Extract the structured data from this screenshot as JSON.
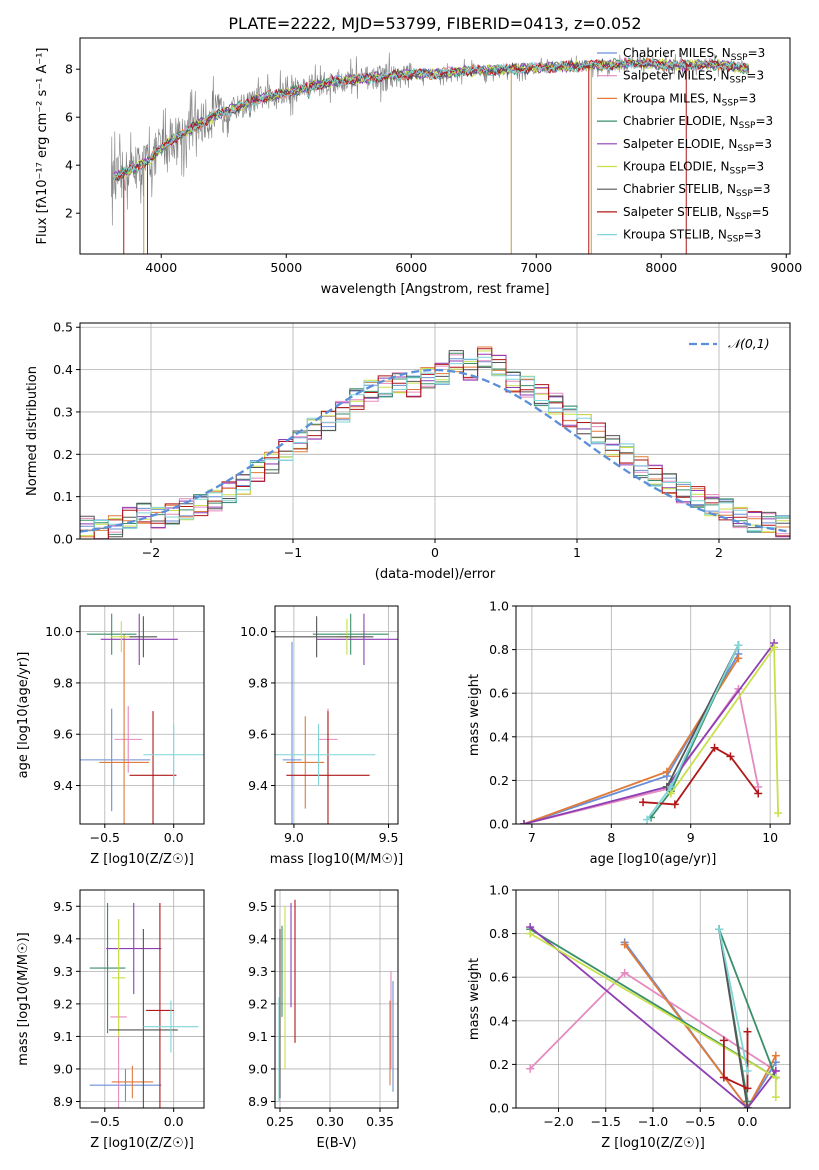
{
  "title": "PLATE=2222, MJD=53799, FIBERID=0413, z=0.052",
  "colors": {
    "chabrier_miles": "#6a8fd6",
    "salpeter_miles": "#e58ac0",
    "kroupa_miles": "#e07b39",
    "chabrier_elodie": "#3a8f6a",
    "salpeter_elodie": "#8e3fb5",
    "kroupa_elodie": "#c8e04a",
    "chabrier_stelib": "#555555",
    "salpeter_stelib": "#b0181a",
    "kroupa_stelib": "#7fd6d8",
    "data": "#808080",
    "normal": "#5b8fd9"
  },
  "chart_data": [
    {
      "type": "line",
      "id": "spectrum",
      "xlabel": "wavelength [Angstrom, rest frame]",
      "ylabel": "Flux [fλ10⁻¹⁷ erg cm⁻² s⁻¹ A⁻¹]",
      "xlim": [
        3350,
        9030
      ],
      "ylim": [
        0.3,
        9.3
      ],
      "xticks": [
        4000,
        5000,
        6000,
        7000,
        8000,
        9000
      ],
      "yticks": [
        2,
        4,
        6,
        8
      ],
      "legend_position": "top-right",
      "legend": [
        "Chabrier MILES, N_SSP=3",
        "Salpeter MILES, N_SSP=3",
        "Kroupa MILES, N_SSP=3",
        "Chabrier ELODIE, N_SSP=3",
        "Salpeter ELODIE, N_SSP=3",
        "Kroupa ELODIE, N_SSP=3",
        "Chabrier STELIB, N_SSP=3",
        "Salpeter STELIB, N_SSP=5",
        "Kroupa STELIB, N_SSP=3"
      ],
      "continuum": {
        "x": [
          3600,
          3700,
          3800,
          3900,
          4000,
          4100,
          4200,
          4400,
          4600,
          4800,
          5000,
          5200,
          5400,
          5600,
          5800,
          6000,
          6200,
          6400,
          6600,
          6800,
          7000,
          7200,
          7400,
          7600,
          7800,
          8000,
          8200,
          8400,
          8600,
          8700
        ],
        "y": [
          3.4,
          3.7,
          3.9,
          4.2,
          4.7,
          5.1,
          5.4,
          6.0,
          6.4,
          6.8,
          7.0,
          7.3,
          7.5,
          7.6,
          7.7,
          7.8,
          7.8,
          7.9,
          7.95,
          8.0,
          8.05,
          8.1,
          8.15,
          8.2,
          8.25,
          8.2,
          8.15,
          8.2,
          8.1,
          8.0
        ]
      }
    },
    {
      "type": "bar",
      "id": "residuals",
      "xlabel": "(data-model)/error",
      "ylabel": "Normed distribution",
      "xlim": [
        -2.5,
        2.5
      ],
      "ylim": [
        0,
        0.51
      ],
      "xticks": [
        -2,
        -1,
        0,
        1,
        2
      ],
      "yticks": [
        0,
        0.1,
        0.2,
        0.3,
        0.4,
        0.5
      ],
      "legend": [
        "𝒩(0,1)"
      ],
      "bin_width": 0.1,
      "bins_start": -2.5,
      "hist": [
        0.03,
        0.02,
        0.03,
        0.05,
        0.06,
        0.05,
        0.06,
        0.07,
        0.08,
        0.09,
        0.11,
        0.13,
        0.16,
        0.18,
        0.21,
        0.23,
        0.26,
        0.28,
        0.3,
        0.33,
        0.35,
        0.36,
        0.37,
        0.36,
        0.38,
        0.39,
        0.42,
        0.4,
        0.43,
        0.41,
        0.37,
        0.36,
        0.34,
        0.32,
        0.29,
        0.27,
        0.25,
        0.22,
        0.2,
        0.17,
        0.15,
        0.13,
        0.11,
        0.1,
        0.08,
        0.07,
        0.05,
        0.04,
        0.04,
        0.03
      ],
      "normal_curve": {
        "mu": 0,
        "sigma": 1
      }
    },
    {
      "type": "scatter",
      "id": "age_vs_z",
      "xlabel": "Z [log10(Z/Z☉)]",
      "ylabel": "age [log10(age/yr)]",
      "xlim": [
        -0.68,
        0.22
      ],
      "ylim": [
        9.25,
        10.1
      ],
      "xticks": [
        -0.5,
        0.0
      ],
      "yticks": [
        9.4,
        9.6,
        9.8,
        10.0
      ],
      "points": [
        {
          "s": 0,
          "x": -0.45,
          "y": 9.5,
          "xe": 0.28,
          "ye": 0.2
        },
        {
          "s": 1,
          "x": -0.33,
          "y": 9.58,
          "xe": 0.1,
          "ye": 0.13
        },
        {
          "s": 2,
          "x": -0.36,
          "y": 9.49,
          "xe": 0.18,
          "ye": 0.5
        },
        {
          "s": 3,
          "x": -0.45,
          "y": 9.99,
          "xe": 0.18,
          "ye": 0.08
        },
        {
          "s": 4,
          "x": -0.25,
          "y": 9.97,
          "xe": 0.28,
          "ye": 0.1
        },
        {
          "s": 5,
          "x": -0.38,
          "y": 9.98,
          "xe": 0.08,
          "ye": 0.06
        },
        {
          "s": 6,
          "x": -0.22,
          "y": 9.98,
          "xe": 0.1,
          "ye": 0.08
        },
        {
          "s": 7,
          "x": -0.15,
          "y": 9.44,
          "xe": 0.17,
          "ye": 0.25
        },
        {
          "s": 8,
          "x": 0.0,
          "y": 9.52,
          "xe": 0.22,
          "ye": 0.12
        }
      ]
    },
    {
      "type": "scatter",
      "id": "age_vs_mass",
      "xlabel": "mass [log10(M/M☉)]",
      "ylabel": "",
      "xlim": [
        8.9,
        9.55
      ],
      "ylim": [
        9.25,
        10.1
      ],
      "xticks": [
        9.0,
        9.5
      ],
      "yticks": [
        9.4,
        9.6,
        9.8,
        10.0
      ],
      "points": [
        {
          "s": 0,
          "x": 8.99,
          "y": 9.5,
          "xe": 0.05,
          "ye": 0.46
        },
        {
          "s": 1,
          "x": 9.18,
          "y": 9.58,
          "xe": 0.05,
          "ye": 0.12
        },
        {
          "s": 2,
          "x": 9.06,
          "y": 9.49,
          "xe": 0.1,
          "ye": 0.18
        },
        {
          "s": 3,
          "x": 9.3,
          "y": 9.99,
          "xe": 0.2,
          "ye": 0.08
        },
        {
          "s": 4,
          "x": 9.37,
          "y": 9.97,
          "xe": 0.25,
          "ye": 0.1
        },
        {
          "s": 5,
          "x": 9.28,
          "y": 9.98,
          "xe": 0.05,
          "ye": 0.07
        },
        {
          "s": 6,
          "x": 9.12,
          "y": 9.98,
          "xe": 0.3,
          "ye": 0.08
        },
        {
          "s": 7,
          "x": 9.18,
          "y": 9.44,
          "xe": 0.22,
          "ye": 0.25
        },
        {
          "s": 8,
          "x": 9.13,
          "y": 9.52,
          "xe": 0.3,
          "ye": 0.12
        }
      ]
    },
    {
      "type": "line",
      "id": "mw_vs_age",
      "xlabel": "age [log10(age/yr)]",
      "ylabel": "mass weight",
      "xlim": [
        6.8,
        10.25
      ],
      "ylim": [
        0,
        1.0
      ],
      "xticks": [
        7,
        8,
        9,
        10
      ],
      "yticks": [
        0.0,
        0.2,
        0.4,
        0.6,
        0.8,
        1.0
      ],
      "series": [
        {
          "s": 0,
          "x": [
            6.9,
            8.7,
            9.6
          ],
          "y": [
            0.0,
            0.22,
            0.78
          ]
        },
        {
          "s": 1,
          "x": [
            6.9,
            8.7,
            9.6,
            9.85
          ],
          "y": [
            0.0,
            0.16,
            0.62,
            0.17
          ]
        },
        {
          "s": 2,
          "x": [
            6.9,
            8.7,
            9.6
          ],
          "y": [
            0.0,
            0.24,
            0.76
          ]
        },
        {
          "s": 3,
          "x": [
            8.5,
            8.75,
            9.6
          ],
          "y": [
            0.03,
            0.15,
            0.82
          ]
        },
        {
          "s": 4,
          "x": [
            6.9,
            8.7,
            10.05
          ],
          "y": [
            0.0,
            0.17,
            0.83
          ]
        },
        {
          "s": 5,
          "x": [
            8.75,
            10.05,
            10.1
          ],
          "y": [
            0.14,
            0.81,
            0.05
          ]
        },
        {
          "s": 6,
          "x": [
            8.7,
            9.6
          ],
          "y": [
            0.17,
            0.82
          ]
        },
        {
          "s": 7,
          "x": [
            8.4,
            8.8,
            9.3,
            9.5,
            9.85
          ],
          "y": [
            0.1,
            0.09,
            0.35,
            0.31,
            0.14
          ]
        },
        {
          "s": 8,
          "x": [
            8.45,
            8.75,
            9.6
          ],
          "y": [
            0.02,
            0.17,
            0.82
          ]
        }
      ]
    },
    {
      "type": "scatter",
      "id": "mass_vs_z",
      "xlabel": "Z [log10(Z/Z☉)]",
      "ylabel": "mass [log10(M/M☉)]",
      "xlim": [
        -0.68,
        0.22
      ],
      "ylim": [
        8.88,
        9.55
      ],
      "xticks": [
        -0.5,
        0.0
      ],
      "yticks": [
        8.9,
        9.0,
        9.1,
        9.2,
        9.3,
        9.4,
        9.5
      ],
      "points": [
        {
          "s": 0,
          "x": -0.35,
          "y": 8.95,
          "xe": 0.26,
          "ye": 0.05
        },
        {
          "s": 1,
          "x": -0.4,
          "y": 9.16,
          "xe": 0.06,
          "ye": 0.3
        },
        {
          "s": 2,
          "x": -0.3,
          "y": 8.96,
          "xe": 0.15,
          "ye": 0.05
        },
        {
          "s": 3,
          "x": -0.48,
          "y": 9.31,
          "xe": 0.13,
          "ye": 0.2
        },
        {
          "s": 4,
          "x": -0.29,
          "y": 9.37,
          "xe": 0.2,
          "ye": 0.14
        },
        {
          "s": 5,
          "x": -0.4,
          "y": 9.28,
          "xe": 0.05,
          "ye": 0.18
        },
        {
          "s": 6,
          "x": -0.22,
          "y": 9.12,
          "xe": 0.25,
          "ye": 0.31
        },
        {
          "s": 7,
          "x": -0.1,
          "y": 9.18,
          "xe": 0.1,
          "ye": 0.33
        },
        {
          "s": 8,
          "x": -0.02,
          "y": 9.13,
          "xe": 0.2,
          "ye": 0.08
        }
      ]
    },
    {
      "type": "scatter",
      "id": "mass_vs_ebv",
      "xlabel": "E(B-V)",
      "ylabel": "",
      "xlim": [
        0.245,
        0.368
      ],
      "ylim": [
        8.88,
        9.55
      ],
      "xticks": [
        0.25,
        0.3,
        0.35
      ],
      "yticks": [
        8.9,
        9.0,
        9.1,
        9.2,
        9.3,
        9.4,
        9.5
      ],
      "points": [
        {
          "s": 0,
          "x": 0.363,
          "y": 9.1,
          "ye": 0.17
        },
        {
          "s": 1,
          "x": 0.361,
          "y": 9.15,
          "ye": 0.15
        },
        {
          "s": 2,
          "x": 0.36,
          "y": 9.08,
          "ye": 0.13
        },
        {
          "s": 3,
          "x": 0.252,
          "y": 9.3,
          "ye": 0.14
        },
        {
          "s": 4,
          "x": 0.261,
          "y": 9.35,
          "ye": 0.16
        },
        {
          "s": 5,
          "x": 0.255,
          "y": 9.25,
          "ye": 0.25
        },
        {
          "s": 6,
          "x": 0.25,
          "y": 9.17,
          "ye": 0.26
        },
        {
          "s": 7,
          "x": 0.265,
          "y": 9.3,
          "ye": 0.22
        },
        {
          "s": 8,
          "x": 0.249,
          "y": 9.06,
          "ye": 0.16
        }
      ]
    },
    {
      "type": "line",
      "id": "mw_vs_z",
      "xlabel": "Z [log10(Z/Z☉)]",
      "ylabel": "mass weight",
      "xlim": [
        -2.45,
        0.45
      ],
      "ylim": [
        0,
        1.0
      ],
      "xticks": [
        -2.0,
        -1.5,
        -1.0,
        -0.5,
        0.0
      ],
      "yticks": [
        0.0,
        0.2,
        0.4,
        0.6,
        0.8,
        1.0
      ],
      "series": [
        {
          "s": 0,
          "x": [
            -1.3,
            0.0,
            0.3
          ],
          "y": [
            0.76,
            0.0,
            0.21
          ]
        },
        {
          "s": 1,
          "x": [
            -2.3,
            -1.3,
            0.3
          ],
          "y": [
            0.18,
            0.62,
            0.17
          ]
        },
        {
          "s": 2,
          "x": [
            -1.3,
            0.0,
            0.3
          ],
          "y": [
            0.75,
            0.0,
            0.24
          ]
        },
        {
          "s": 3,
          "x": [
            -2.3,
            0.3,
            -0.3,
            0.0
          ],
          "y": [
            0.82,
            0.14,
            0.82,
            0.03
          ]
        },
        {
          "s": 4,
          "x": [
            -2.3,
            0.0,
            0.3
          ],
          "y": [
            0.83,
            0.0,
            0.17
          ]
        },
        {
          "s": 5,
          "x": [
            -2.3,
            0.3,
            0.3
          ],
          "y": [
            0.8,
            0.14,
            0.05
          ]
        },
        {
          "s": 6,
          "x": [
            -0.3,
            0.0
          ],
          "y": [
            0.82,
            0.0
          ]
        },
        {
          "s": 7,
          "x": [
            -0.25,
            -0.25,
            0.0,
            0.0
          ],
          "y": [
            0.31,
            0.14,
            0.09,
            0.35
          ]
        },
        {
          "s": 8,
          "x": [
            -0.3,
            0.0
          ],
          "y": [
            0.82,
            0.17
          ]
        }
      ]
    }
  ]
}
